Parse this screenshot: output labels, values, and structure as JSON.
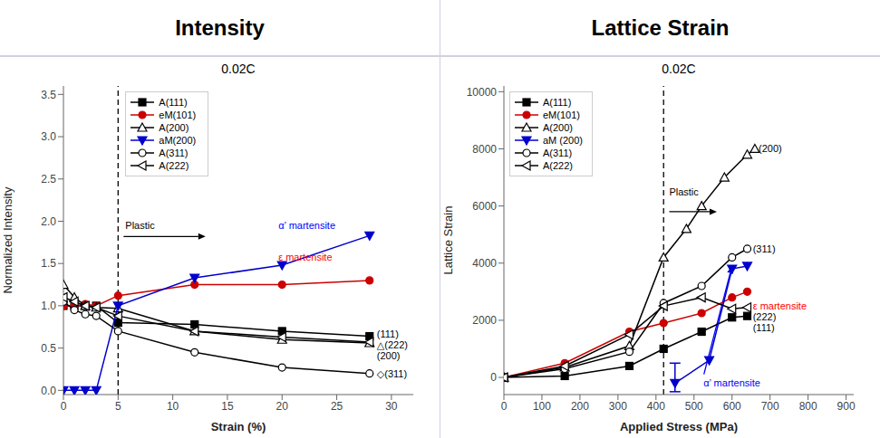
{
  "chart_data": [
    {
      "type": "line",
      "title": "Intensity",
      "subtitle": "0.02C",
      "x_label": "Strain (%)",
      "y_label": "Normalized Intensity",
      "xlim": [
        0,
        32
      ],
      "ylim": [
        -0.05,
        3.6
      ],
      "xticks": [
        0,
        5,
        10,
        15,
        20,
        25,
        30
      ],
      "yticks": [
        {
          "value": 0.0,
          "label": "0.0"
        },
        {
          "value": 0.5,
          "label": "0.5"
        },
        {
          "value": 1.0,
          "label": "1.0"
        },
        {
          "value": 1.5,
          "label": "1.5"
        },
        {
          "value": 2.0,
          "label": "2.0"
        },
        {
          "value": 2.5,
          "label": "2.5"
        },
        {
          "value": 3.0,
          "label": "3.0"
        },
        {
          "value": 3.5,
          "label": "3.5"
        }
      ],
      "grid": false,
      "legend": "upper left",
      "series": [
        {
          "name": "A(111)",
          "color": "#000000",
          "marker": "square",
          "line_style": "solid",
          "x": [
            0,
            1,
            2,
            3,
            5,
            12,
            20,
            28
          ],
          "values": [
            1.0,
            1.0,
            1.0,
            1.0,
            0.8,
            0.78,
            0.7,
            0.64
          ]
        },
        {
          "name": "eM(101)",
          "color": "#cc0000",
          "marker": "circle",
          "line_style": "solid",
          "x": [
            0,
            1,
            2,
            3,
            5,
            12,
            20,
            28
          ],
          "values": [
            1.0,
            1.0,
            1.02,
            1.0,
            1.12,
            1.25,
            1.25,
            1.3
          ]
        },
        {
          "name": "A(200)",
          "color": "#000000",
          "marker": "open_triangle_up",
          "line_style": "solid",
          "x": [
            0,
            1,
            2,
            3,
            5,
            12,
            20,
            28
          ],
          "values": [
            1.25,
            1.1,
            1.0,
            0.98,
            0.97,
            0.7,
            0.6,
            0.56
          ]
        },
        {
          "name": "aM(200)",
          "color": "#0000cc",
          "marker": "triangle_down",
          "line_style": "solid",
          "x": [
            0,
            1,
            2,
            3,
            5,
            12,
            20,
            28
          ],
          "values": [
            0.0,
            0.0,
            0.0,
            0.0,
            1.0,
            1.33,
            1.48,
            1.83
          ]
        },
        {
          "name": "A(311)",
          "color": "#000000",
          "marker": "open_circle",
          "line_style": "solid",
          "x": [
            0,
            1,
            2,
            3,
            5,
            12,
            20,
            28
          ],
          "values": [
            1.05,
            0.95,
            0.9,
            0.88,
            0.7,
            0.45,
            0.27,
            0.2
          ]
        },
        {
          "name": "A(222)",
          "color": "#000000",
          "marker": "open_triangle_left",
          "line_style": "solid",
          "x": [
            0,
            1,
            2,
            3,
            5,
            12,
            20,
            28
          ],
          "values": [
            1.1,
            1.05,
            1.0,
            0.98,
            0.88,
            0.7,
            0.63,
            0.57
          ]
        }
      ],
      "reference_lines": [
        {
          "x": 5,
          "line_style": "dashed",
          "color": "#000000"
        }
      ],
      "annotations": [
        {
          "text": "Plastic",
          "x": 5.5,
          "y": 1.95,
          "color": "#000000"
        },
        {
          "text": "(111)",
          "x": 28.5,
          "y": 0.67,
          "color": "#000000"
        },
        {
          "text": "△(222)",
          "x": 28.5,
          "y": 0.59,
          "color": "#000000"
        },
        {
          "text": "(200)",
          "x": 28.5,
          "y": 0.47,
          "color": "#000000"
        },
        {
          "text": "◇(311)",
          "x": 28.5,
          "y": 0.2,
          "color": "#000000"
        },
        {
          "text": "α’ martensite",
          "x": 19.5,
          "y": 1.95,
          "color": "blue"
        },
        {
          "text": "ε martensite",
          "x": 19.5,
          "y": 1.58,
          "color": "red"
        }
      ],
      "arrows": [
        {
          "from": [
            5.5,
            1.82
          ],
          "to": [
            13,
            1.82
          ],
          "color": "#000000"
        }
      ]
    },
    {
      "type": "line",
      "title": "Lattice Strain",
      "subtitle": "0.02C",
      "x_label": "Applied Stress (MPa)",
      "y_label": "Lattice Strain",
      "xlim": [
        0,
        920
      ],
      "ylim": [
        -600,
        10200
      ],
      "xticks": [
        0,
        100,
        200,
        300,
        400,
        500,
        600,
        700,
        800,
        900
      ],
      "yticks": [
        0,
        2000,
        4000,
        6000,
        8000,
        10000
      ],
      "grid": false,
      "legend": "upper left",
      "series": [
        {
          "name": "A(111)",
          "color": "#000000",
          "marker": "square",
          "line_style": "solid",
          "x": [
            0,
            160,
            330,
            420,
            520,
            600,
            640
          ],
          "values": [
            0,
            50,
            400,
            1000,
            1600,
            2100,
            2150
          ]
        },
        {
          "name": "eM(101)",
          "color": "#cc0000",
          "marker": "circle",
          "line_style": "solid",
          "x": [
            0,
            160,
            330,
            420,
            520,
            600,
            640
          ],
          "values": [
            0,
            500,
            1600,
            1900,
            2250,
            2800,
            3000
          ]
        },
        {
          "name": "A(200)",
          "color": "#000000",
          "marker": "open_triangle_up",
          "line_style": "solid",
          "x": [
            0,
            160,
            330,
            420,
            480,
            520,
            580,
            640,
            660
          ],
          "values": [
            0,
            350,
            1100,
            4200,
            5200,
            6000,
            7000,
            7800,
            8000
          ]
        },
        {
          "name": "aM (200)",
          "color": "#0000cc",
          "marker": "triangle_down",
          "line_style": "solid",
          "x": [
            450,
            540,
            600,
            640
          ],
          "values": [
            -200,
            600,
            3800,
            3900
          ],
          "error_minus": [
            300,
            null,
            null,
            null
          ],
          "error_plus": [
            700,
            null,
            null,
            null
          ]
        },
        {
          "name": "A(311)",
          "color": "#000000",
          "marker": "open_circle",
          "line_style": "solid",
          "x": [
            0,
            160,
            330,
            420,
            520,
            600,
            640
          ],
          "values": [
            0,
            300,
            900,
            2600,
            3200,
            4200,
            4500
          ]
        },
        {
          "name": "A(222)",
          "color": "#000000",
          "marker": "open_triangle_left",
          "line_style": "solid",
          "x": [
            0,
            160,
            330,
            420,
            520,
            600,
            640
          ],
          "values": [
            0,
            400,
            1500,
            2500,
            2800,
            2400,
            2450
          ]
        }
      ],
      "reference_lines": [
        {
          "x": 420,
          "line_style": "dashed",
          "color": "#000000"
        }
      ],
      "annotations": [
        {
          "text": "Plastic",
          "x": 430,
          "y": 6500,
          "color": "#000000"
        },
        {
          "text": "(200)",
          "x": 665,
          "y": 8000,
          "color": "#000000"
        },
        {
          "text": "(311)",
          "x": 650,
          "y": 4500,
          "color": "#000000"
        },
        {
          "text": "ε martensite",
          "x": 650,
          "y": 2500,
          "color": "red"
        },
        {
          "text": "(222)",
          "x": 650,
          "y": 2300,
          "color": "#000000"
        },
        {
          "text": "(111)",
          "x": 650,
          "y": 2050,
          "color": "#000000"
        },
        {
          "text": "α’ martensite",
          "x": 520,
          "y": -200,
          "color": "blue"
        }
      ],
      "arrows": [
        {
          "from": [
            435,
            5800
          ],
          "to": [
            560,
            5800
          ],
          "color": "#000000"
        },
        {
          "from": [
            520,
            -200
          ],
          "to": [
            600,
            3900
          ],
          "color": "blue"
        }
      ]
    }
  ]
}
